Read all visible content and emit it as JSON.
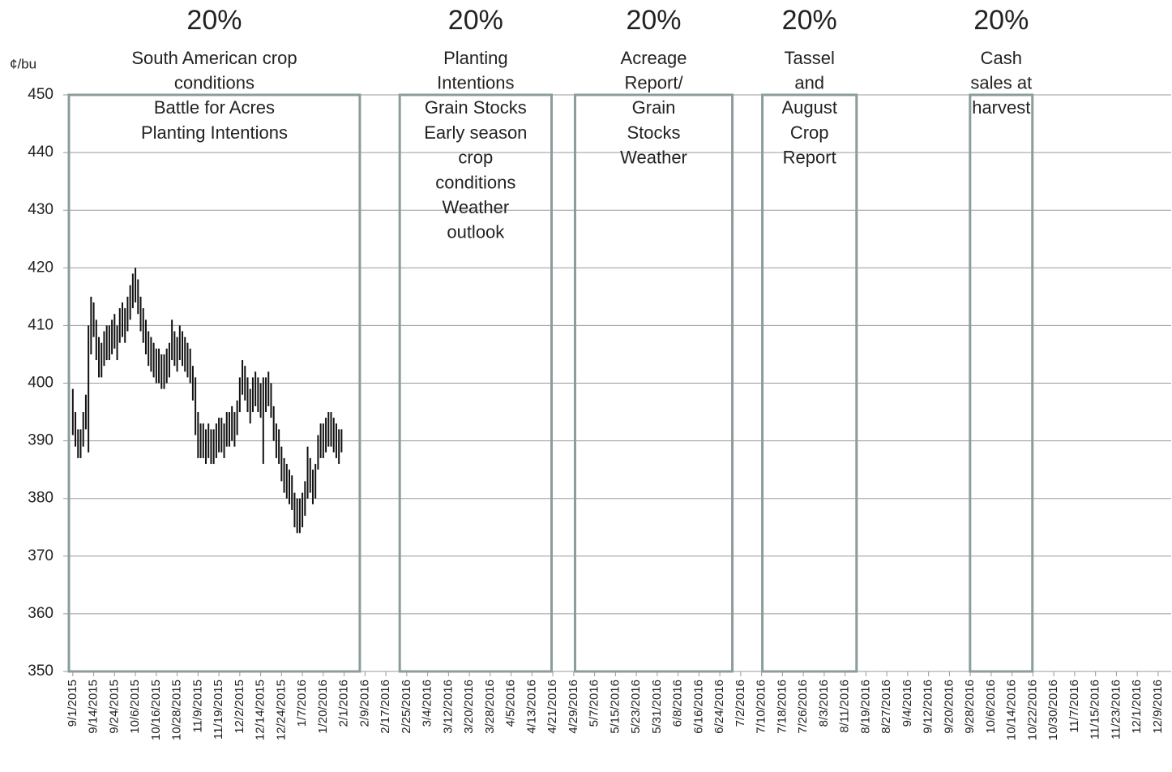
{
  "chart_data": {
    "type": "range-bar",
    "y_label": "¢/bu",
    "color": "#111111",
    "box_color": "#8c9c9c",
    "grid": true,
    "ylim": [
      350,
      450
    ],
    "yticks": [
      350,
      360,
      370,
      380,
      390,
      400,
      410,
      420,
      430,
      440,
      450
    ],
    "xlim": [
      -1.5,
      421
    ],
    "xticks": [
      {
        "value": 0,
        "label": "9/1/2015"
      },
      {
        "value": 8,
        "label": "9/14/2015"
      },
      {
        "value": 16,
        "label": "9/24/2015"
      },
      {
        "value": 24,
        "label": "10/6/2015"
      },
      {
        "value": 32,
        "label": "10/16/2015"
      },
      {
        "value": 40,
        "label": "10/28/2015"
      },
      {
        "value": 48,
        "label": "11/9/2015"
      },
      {
        "value": 56,
        "label": "11/19/2015"
      },
      {
        "value": 64,
        "label": "12/2/2015"
      },
      {
        "value": 72,
        "label": "12/14/2015"
      },
      {
        "value": 80,
        "label": "12/24/2015"
      },
      {
        "value": 88,
        "label": "1/7/2016"
      },
      {
        "value": 96,
        "label": "1/20/2016"
      },
      {
        "value": 104,
        "label": "2/1/2016"
      },
      {
        "value": 112,
        "label": "2/9/2016"
      },
      {
        "value": 120,
        "label": "2/17/2016"
      },
      {
        "value": 128,
        "label": "2/25/2016"
      },
      {
        "value": 136,
        "label": "3/4/2016"
      },
      {
        "value": 144,
        "label": "3/12/2016"
      },
      {
        "value": 152,
        "label": "3/20/2016"
      },
      {
        "value": 160,
        "label": "3/28/2016"
      },
      {
        "value": 168,
        "label": "4/5/2016"
      },
      {
        "value": 176,
        "label": "4/13/2016"
      },
      {
        "value": 184,
        "label": "4/21/2016"
      },
      {
        "value": 192,
        "label": "4/29/2016"
      },
      {
        "value": 200,
        "label": "5/7/2016"
      },
      {
        "value": 208,
        "label": "5/15/2016"
      },
      {
        "value": 216,
        "label": "5/23/2016"
      },
      {
        "value": 224,
        "label": "5/31/2016"
      },
      {
        "value": 232,
        "label": "6/8/2016"
      },
      {
        "value": 240,
        "label": "6/16/2016"
      },
      {
        "value": 248,
        "label": "6/24/2016"
      },
      {
        "value": 256,
        "label": "7/2/2016"
      },
      {
        "value": 264,
        "label": "7/10/2016"
      },
      {
        "value": 272,
        "label": "7/18/2016"
      },
      {
        "value": 280,
        "label": "7/26/2016"
      },
      {
        "value": 288,
        "label": "8/3/2016"
      },
      {
        "value": 296,
        "label": "8/11/2016"
      },
      {
        "value": 304,
        "label": "8/19/2016"
      },
      {
        "value": 312,
        "label": "8/27/2016"
      },
      {
        "value": 320,
        "label": "9/4/2016"
      },
      {
        "value": 328,
        "label": "9/12/2016"
      },
      {
        "value": 336,
        "label": "9/20/2016"
      },
      {
        "value": 344,
        "label": "9/28/2016"
      },
      {
        "value": 352,
        "label": "10/6/2016"
      },
      {
        "value": 360,
        "label": "10/14/2016"
      },
      {
        "value": 368,
        "label": "10/22/2016"
      },
      {
        "value": 376,
        "label": "10/30/2016"
      },
      {
        "value": 384,
        "label": "11/7/2016"
      },
      {
        "value": 392,
        "label": "11/15/2016"
      },
      {
        "value": 400,
        "label": "11/23/2016"
      },
      {
        "value": 408,
        "label": "12/1/2016"
      },
      {
        "value": 416,
        "label": "12/9/2016"
      }
    ],
    "x": [
      0,
      1,
      2,
      3,
      4,
      5,
      6,
      7,
      8,
      9,
      10,
      11,
      12,
      13,
      14,
      15,
      16,
      17,
      18,
      19,
      20,
      21,
      22,
      23,
      24,
      25,
      26,
      27,
      28,
      29,
      30,
      31,
      32,
      33,
      34,
      35,
      36,
      37,
      38,
      39,
      40,
      41,
      42,
      43,
      44,
      45,
      46,
      47,
      48,
      49,
      50,
      51,
      52,
      53,
      54,
      55,
      56,
      57,
      58,
      59,
      60,
      61,
      62,
      63,
      64,
      65,
      66,
      67,
      68,
      69,
      70,
      71,
      72,
      73,
      74,
      75,
      76,
      77,
      78,
      79,
      80,
      81,
      82,
      83,
      84,
      85,
      86,
      87,
      88,
      89,
      90,
      91,
      92,
      93,
      94,
      95,
      96,
      97,
      98,
      99,
      100,
      101,
      102,
      103
    ],
    "high": [
      399,
      395,
      392,
      392,
      395,
      398,
      410,
      415,
      414,
      411,
      408,
      407,
      409,
      410,
      410,
      411,
      412,
      410,
      413,
      414,
      413,
      415,
      417,
      419,
      420,
      418,
      415,
      413,
      411,
      409,
      408,
      407,
      406,
      406,
      405,
      405,
      406,
      407,
      411,
      409,
      408,
      410,
      409,
      408,
      407,
      406,
      403,
      401,
      395,
      393,
      393,
      392,
      393,
      392,
      392,
      393,
      394,
      394,
      393,
      395,
      395,
      396,
      395,
      397,
      401,
      404,
      403,
      401,
      399,
      401,
      402,
      401,
      400,
      401,
      401,
      402,
      400,
      396,
      393,
      392,
      389,
      387,
      386,
      385,
      384,
      381,
      380,
      380,
      381,
      383,
      389,
      387,
      385,
      386,
      391,
      393,
      393,
      394,
      395,
      395,
      394,
      393,
      392,
      392
    ],
    "low": [
      391,
      389,
      387,
      387,
      389,
      392,
      388,
      405,
      408,
      404,
      401,
      401,
      403,
      404,
      404,
      405,
      406,
      404,
      407,
      408,
      407,
      409,
      411,
      413,
      414,
      412,
      409,
      407,
      405,
      403,
      402,
      401,
      400,
      400,
      399,
      399,
      400,
      401,
      404,
      403,
      402,
      404,
      403,
      402,
      401,
      400,
      397,
      391,
      387,
      387,
      387,
      386,
      387,
      386,
      386,
      387,
      388,
      388,
      387,
      389,
      389,
      390,
      389,
      391,
      395,
      398,
      397,
      395,
      393,
      395,
      396,
      395,
      394,
      386,
      395,
      396,
      394,
      390,
      387,
      386,
      383,
      381,
      380,
      379,
      378,
      375,
      374,
      374,
      375,
      377,
      380,
      381,
      379,
      380,
      385,
      387,
      387,
      388,
      389,
      389,
      388,
      387,
      386,
      388
    ],
    "annotations": [
      {
        "percent": "20%",
        "lines": [
          "South American crop",
          "conditions",
          "Battle for Acres",
          "Planting Intentions"
        ],
        "span": [
          -1.5,
          110
        ]
      },
      {
        "percent": "20%",
        "lines": [
          "Planting",
          "Intentions",
          "Grain Stocks",
          "Early season",
          "crop",
          "conditions",
          "Weather",
          "outlook"
        ],
        "span": [
          125.3,
          183.5
        ]
      },
      {
        "percent": "20%",
        "lines": [
          "Acreage",
          "Report/",
          "Grain",
          "Stocks",
          "Weather"
        ],
        "span": [
          192.5,
          252.8
        ]
      },
      {
        "percent": "20%",
        "lines": [
          "Tassel",
          "and",
          "August",
          "Crop",
          "Report"
        ],
        "span": [
          264.3,
          300.4
        ]
      },
      {
        "percent": "20%",
        "lines": [
          "Cash",
          "sales at",
          "harvest"
        ],
        "span": [
          343.9,
          367.8
        ]
      }
    ]
  }
}
